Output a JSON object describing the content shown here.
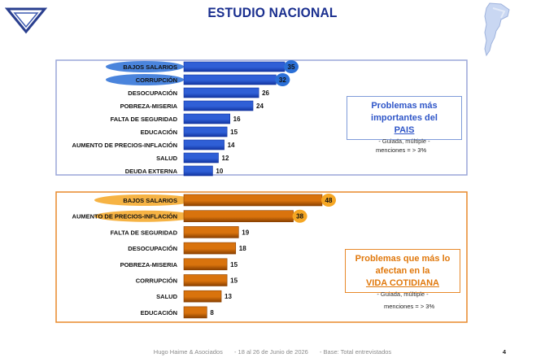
{
  "title": "ESTUDIO NACIONAL",
  "footer": {
    "author": "Hugo Haime & Asociados",
    "dates": "- 18 al 26 de Junio de 2026",
    "base": "-     Base: Total entrevistados",
    "page": "4"
  },
  "chart_data": [
    {
      "type": "bar",
      "orientation": "horizontal",
      "categories": [
        "BAJOS SALARIOS",
        "CORRUPCIÓN",
        "DESOCUPACIÓN",
        "POBREZA-MISERIA",
        "FALTA DE SEGURIDAD",
        "EDUCACIÓN",
        "AUMENTO DE PRECIOS-INFLACIÓN",
        "SALUD",
        "DEUDA EXTERNA"
      ],
      "values": [
        35,
        32,
        26,
        24,
        16,
        15,
        14,
        12,
        10
      ],
      "highlighted": [
        "BAJOS SALARIOS",
        "CORRUPCIÓN"
      ],
      "legend_title": "Problemas más importantes del",
      "legend_title_underlined": "PAIS",
      "legend_subtitle": "- Guiada, múltiple -",
      "note": "menciones = > 3%",
      "colors": {
        "bar": "#2f5fd6",
        "bar_dark": "#1234a0",
        "frame": "#9aa6d8",
        "highlight": "#2a6fd6",
        "title": "#2f56c8"
      }
    },
    {
      "type": "bar",
      "orientation": "horizontal",
      "categories": [
        "BAJOS SALARIOS",
        "AUMENTO DE PRECIOS-INFLACIÓN",
        "FALTA DE SEGURIDAD",
        "DESOCUPACIÓN",
        "POBREZA-MISERIA",
        "CORRUPCIÓN",
        "SALUD",
        "EDUCACIÓN"
      ],
      "values": [
        48,
        38,
        19,
        18,
        15,
        15,
        13,
        8
      ],
      "highlighted": [
        "BAJOS SALARIOS",
        "AUMENTO DE PRECIOS-INFLACIÓN"
      ],
      "legend_title": "Problemas que más lo afectan en la",
      "legend_title_underlined": "VIDA COTIDIANA",
      "legend_subtitle": "- Guiada, múltiple -",
      "note": "menciones = > 3%",
      "colors": {
        "bar": "#d9730d",
        "bar_dark": "#8a4000",
        "frame": "#e8892a",
        "highlight": "#f5a623",
        "title": "#e0780c"
      }
    }
  ]
}
